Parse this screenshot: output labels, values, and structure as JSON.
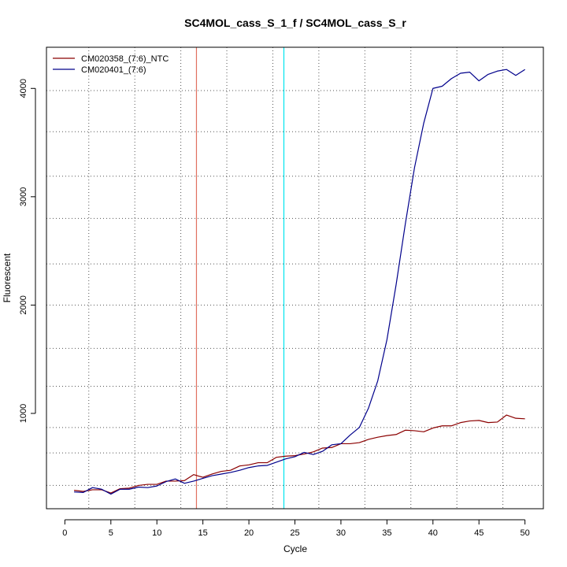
{
  "chart_data": {
    "type": "line",
    "title": "SC4MOL_cass_S_1_f / SC4MOL_cass_S_r",
    "xlabel": "Cycle",
    "ylabel": "Fluorescent",
    "xlim": [
      -2,
      52
    ],
    "ylim": [
      120,
      4380
    ],
    "x_ticks": [
      0,
      5,
      10,
      15,
      20,
      25,
      30,
      35,
      40,
      45,
      50
    ],
    "y_ticks": [
      1000,
      2000,
      3000,
      4000
    ],
    "x_grid": [
      2.6,
      7.6,
      12.6,
      17.6,
      22.6,
      27.6,
      32.6,
      37.6,
      42.6,
      47.6
    ],
    "y_grid": [
      335,
      635,
      870,
      1250,
      1600,
      2000,
      2380,
      2800,
      3190,
      3600,
      3980,
      4390
    ],
    "grid": true,
    "legend_position": "top-left",
    "threshold_lines": [
      {
        "x": 14.3,
        "color": "#e07060"
      },
      {
        "x": 23.8,
        "color": "#00e5ee"
      }
    ],
    "x": [
      1,
      2,
      3,
      4,
      5,
      6,
      7,
      8,
      9,
      10,
      11,
      12,
      13,
      14,
      15,
      16,
      17,
      18,
      19,
      20,
      21,
      22,
      23,
      24,
      25,
      26,
      27,
      28,
      29,
      30,
      31,
      32,
      33,
      34,
      35,
      36,
      37,
      38,
      39,
      40,
      41,
      42,
      43,
      44,
      45,
      46,
      47,
      48,
      49,
      50
    ],
    "series": [
      {
        "name": "CM020358_(7:6)_NTC",
        "color": "#8b0000",
        "values": [
          290,
          280,
          295,
          295,
          265,
          305,
          310,
          335,
          345,
          345,
          375,
          375,
          380,
          435,
          410,
          440,
          465,
          475,
          515,
          525,
          545,
          545,
          595,
          605,
          610,
          625,
          645,
          680,
          685,
          720,
          720,
          730,
          760,
          780,
          795,
          805,
          845,
          840,
          830,
          865,
          885,
          885,
          915,
          930,
          935,
          915,
          920,
          985,
          955,
          950
        ]
      },
      {
        "name": "CM020401_(7:6)",
        "color": "#00008b",
        "values": [
          275,
          270,
          315,
          300,
          255,
          300,
          300,
          320,
          315,
          330,
          370,
          395,
          355,
          375,
          400,
          425,
          440,
          455,
          475,
          500,
          515,
          520,
          550,
          580,
          600,
          640,
          620,
          650,
          710,
          720,
          800,
          870,
          1050,
          1300,
          1680,
          2190,
          2750,
          3270,
          3680,
          4000,
          4020,
          4090,
          4140,
          4150,
          4070,
          4130,
          4160,
          4175,
          4120,
          4175
        ]
      }
    ]
  }
}
